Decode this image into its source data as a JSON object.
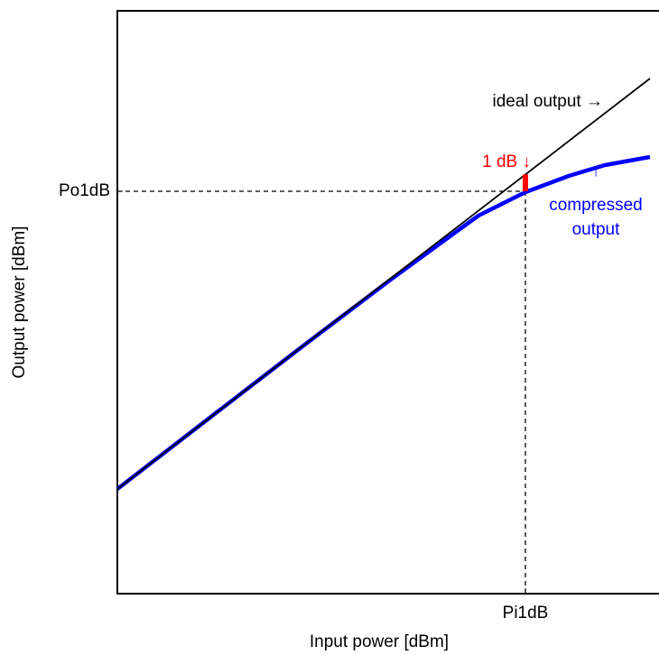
{
  "chart_data": {
    "type": "line",
    "xlabel": "Input power [dBm]",
    "ylabel": "Output power [dBm]",
    "xlim": [
      0,
      30
    ],
    "ylim": [
      0,
      32.3
    ],
    "xticks": [
      {
        "value": 22.6,
        "label": "Pi1dB"
      }
    ],
    "yticks": [
      {
        "value": 22.3,
        "label": "Po1dB"
      }
    ],
    "series": [
      {
        "name": "ideal output",
        "color": "#000000",
        "x": [
          0,
          29.5
        ],
        "values": [
          5.8,
          28.55
        ]
      },
      {
        "name": "compressed output",
        "color": "#0000ff",
        "x": [
          0,
          5,
          10,
          15,
          18,
          20,
          22.6,
          25,
          27,
          29.5
        ],
        "values": [
          5.8,
          9.66,
          13.51,
          17.3,
          19.5,
          20.95,
          22.25,
          23.15,
          23.75,
          24.2
        ]
      }
    ],
    "marker": {
      "x": 22.6,
      "y": [
        22.3,
        23.23
      ],
      "color": "#ff0000"
    },
    "annotations": {
      "ideal": "ideal output →",
      "db": "1 dB ↓",
      "arrow": "↑",
      "compressed": [
        "compressed",
        "output"
      ]
    }
  }
}
